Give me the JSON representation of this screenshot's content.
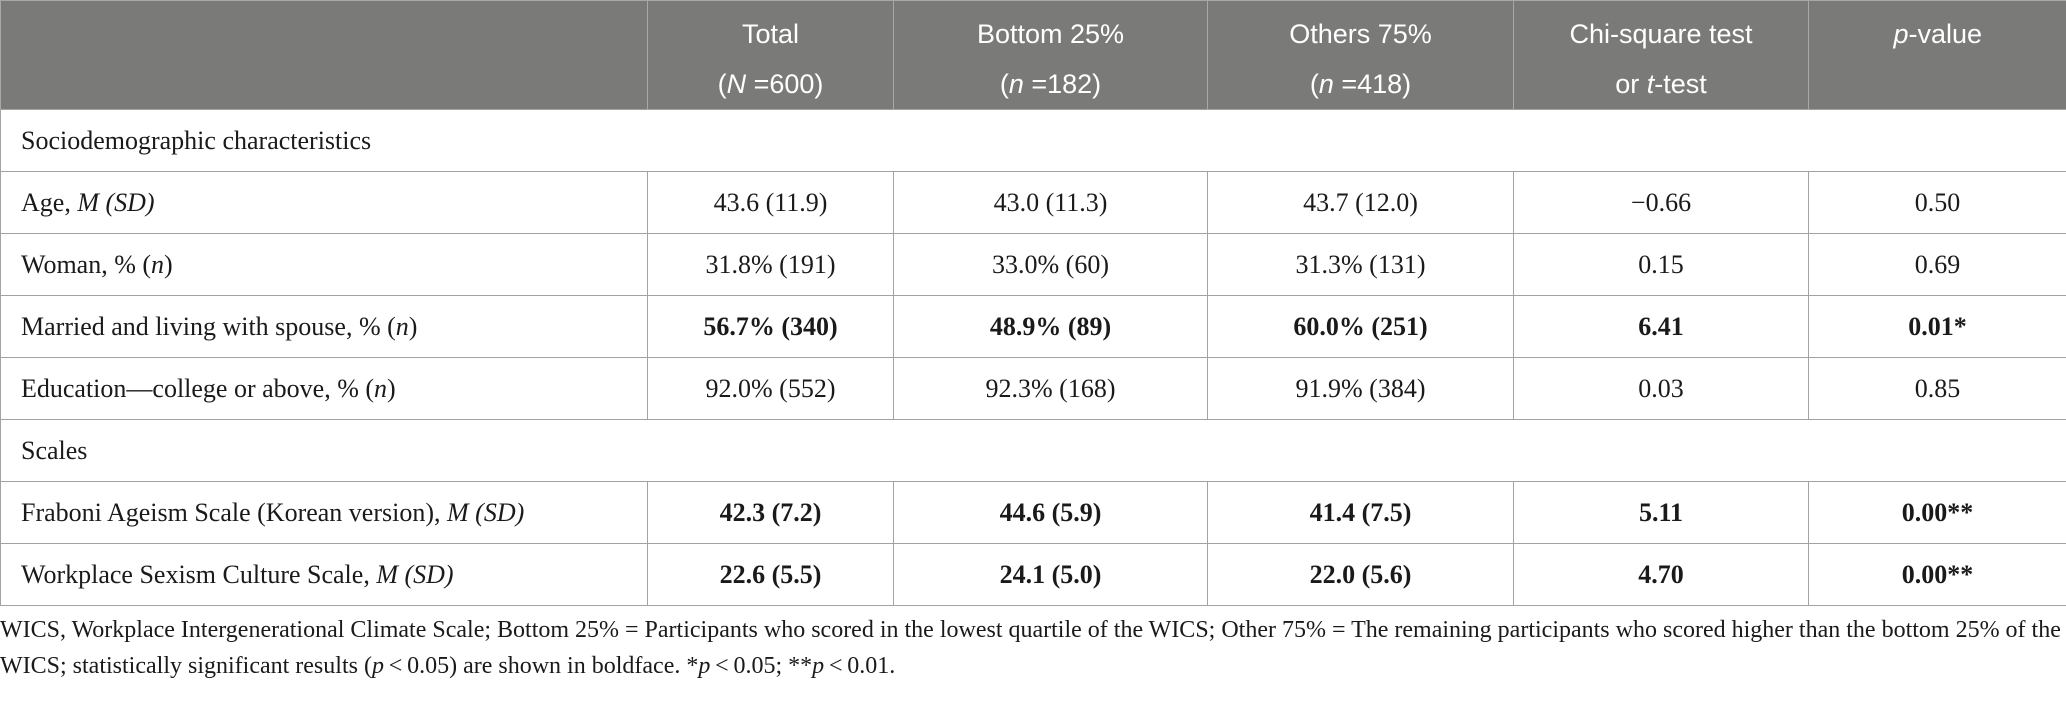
{
  "header": {
    "col0": "",
    "total": {
      "line1": "Total",
      "pre": "(",
      "var": "N",
      "post": " =600)"
    },
    "bottom": {
      "line1": "Bottom 25%",
      "pre": "(",
      "var": "n",
      "post": " =182)"
    },
    "others": {
      "line1": "Others 75%",
      "pre": "(",
      "var": "n",
      "post": " =418)"
    },
    "test": {
      "line1": "Chi-square test",
      "pre": "or ",
      "var": "t",
      "post": "-test"
    },
    "pvalue": {
      "var": "p",
      "post": "-value"
    }
  },
  "sections": {
    "socio": "Sociodemographic characteristics",
    "scales": "Scales"
  },
  "rows": {
    "age": {
      "label": "Age, ",
      "label_it": "M (SD)",
      "label_tail": "",
      "total": "43.6 (11.9)",
      "bottom": "43.0 (11.3)",
      "others": "43.7 (12.0)",
      "test": "−0.66",
      "p": "0.50"
    },
    "woman": {
      "label": "Woman, % (",
      "label_it": "n",
      "label_tail": ")",
      "total": "31.8% (191)",
      "bottom": "33.0% (60)",
      "others": "31.3% (131)",
      "test": "0.15",
      "p": "0.69"
    },
    "married": {
      "label": "Married and living with spouse, % (",
      "label_it": "n",
      "label_tail": ")",
      "total": "56.7% (340)",
      "bottom": "48.9% (89)",
      "others": "60.0% (251)",
      "test": "6.41",
      "p": "0.01*"
    },
    "education": {
      "label": "Education—college or above, % (",
      "label_it": "n",
      "label_tail": ")",
      "total": "92.0% (552)",
      "bottom": "92.3% (168)",
      "others": "91.9% (384)",
      "test": "0.03",
      "p": "0.85"
    },
    "fraboni": {
      "label": "Fraboni Ageism Scale (Korean version), ",
      "label_it": "M (SD)",
      "label_tail": "",
      "total": "42.3 (7.2)",
      "bottom": "44.6 (5.9)",
      "others": "41.4 (7.5)",
      "test": "5.11",
      "p": "0.00**"
    },
    "sexism": {
      "label": "Workplace Sexism Culture Scale, ",
      "label_it": "M (SD)",
      "label_tail": "",
      "total": "22.6 (5.5)",
      "bottom": "24.1 (5.0)",
      "others": "22.0 (5.6)",
      "test": "4.70",
      "p": "0.00**"
    }
  },
  "footnote": {
    "part1": "WICS, Workplace Intergenerational Climate Scale; Bottom 25% = Participants who scored in the lowest quartile of the WICS; Other 75% = The remaining participants who scored higher than the bottom 25% of the WICS; statistically significant results (",
    "p1": "p",
    "part2": " < 0.05) are shown in boldface.  *",
    "p2": "p",
    "part3": " < 0.05; **",
    "p3": "p",
    "part4": " < 0.01."
  },
  "colors": {
    "header_bg": "#7a7a79",
    "header_text": "#ffffff",
    "border": "#a3a3a3",
    "text": "#1a1a1a"
  }
}
